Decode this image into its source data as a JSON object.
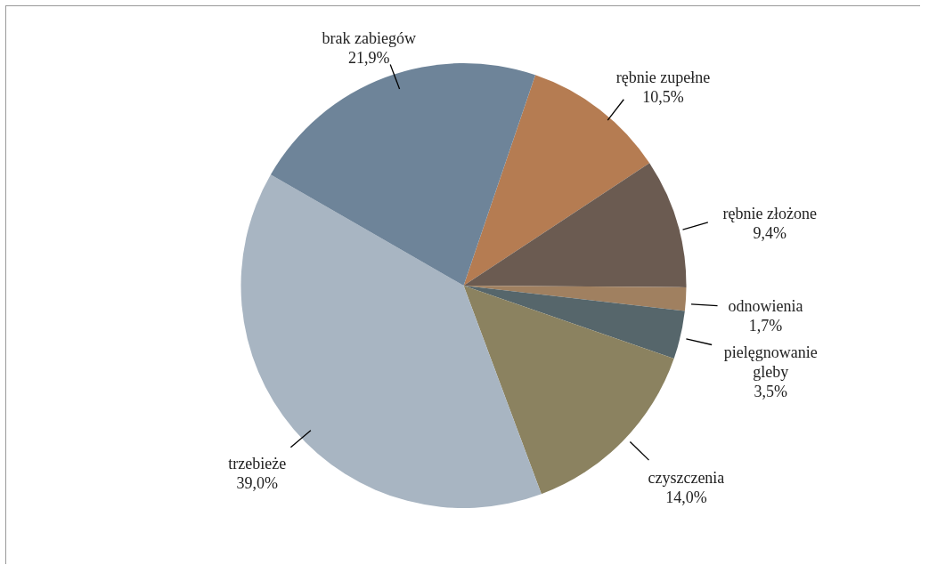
{
  "chart_data": {
    "type": "pie",
    "categories": [
      "rębnie zupełne",
      "rębnie złożone",
      "odnowienia",
      "pielęgnowanie gleby",
      "czyszczenia",
      "trzebieże",
      "brak zabiegów"
    ],
    "values": [
      10.5,
      9.4,
      1.7,
      3.5,
      14.0,
      39.0,
      21.9
    ],
    "value_labels": [
      "10,5%",
      "9,4%",
      "1,7%",
      "3,5%",
      "14,0%",
      "39,0%",
      "21,9%"
    ],
    "colors": [
      "#b57c52",
      "#6b5b51",
      "#a08060",
      "#56666b",
      "#8b8260",
      "#a8b5c2",
      "#6e8499"
    ]
  }
}
